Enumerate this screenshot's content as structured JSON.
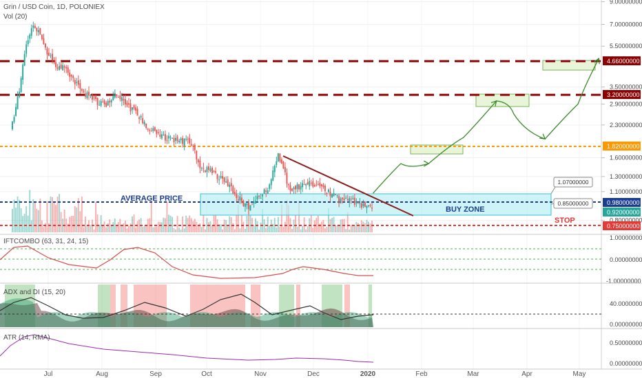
{
  "header": {
    "symbol": "Grin / USD Coin, 1D, POLONIEX",
    "volume": "Vol (20)"
  },
  "colors": {
    "up": "#26a69a",
    "down": "#ef5350",
    "dashed_levels": "#8b0000",
    "orange": "#ff9800",
    "blue": "#1a3d8f",
    "red": "#e53935",
    "zone_fill": "#b9f0f5",
    "zone_stroke": "#36c0d0",
    "target_fill": "#e8f5d8",
    "target_stroke": "#7cb35a",
    "trend": "#8b1a1a",
    "arrow": "#3a8a2a",
    "ift": "#d84c4c",
    "adx": "#333333",
    "atr": "#9c27b0"
  },
  "price_axis": {
    "ticks": [
      "9.00000000",
      "7.00000000",
      "5.50000000",
      "3.50000000",
      "2.90000000",
      "2.30000000",
      "1.60000000",
      "1.30000000",
      "1.10000000",
      "0.80000000"
    ],
    "tag_labels": {
      "l466": "4.66000000",
      "l320": "3.20000000",
      "l182": "1.82000000",
      "l098": "0.98000000",
      "l092": "0.92000000",
      "l075": "0.75000000"
    }
  },
  "time_axis": {
    "labels": [
      "Jul",
      "Aug",
      "Sep",
      "Oct",
      "Nov",
      "Dec",
      "2020",
      "Feb",
      "Mar",
      "Apr",
      "May"
    ]
  },
  "annotations": {
    "average_price": "AVERAGE PRICE",
    "buy_zone": "BUY ZONE",
    "stop": "STOP",
    "callout_high": "1.07000000",
    "callout_low": "0.85000000"
  },
  "indicators": {
    "ift": {
      "label": "IFTCOMBO (63, 31, 24, 15)",
      "ticks": [
        "1.00000000",
        "0.00000000",
        "-1.00000000"
      ]
    },
    "adx": {
      "label": "ADX and DI (15, 20)",
      "ticks": [
        "40.00000000",
        "0.00000000"
      ]
    },
    "atr": {
      "label": "ATR (14, RMA)",
      "ticks": [
        "0.50000000",
        "0.00000000"
      ]
    }
  },
  "chart_data": {
    "type": "line",
    "title": "Grin / USD Coin, 1D, POLONIEX",
    "price_scale": "log",
    "levels": [
      4.66,
      3.2,
      1.82,
      0.98,
      0.92,
      0.75
    ],
    "buy_zone": [
      0.85,
      1.07
    ],
    "price_path": {
      "x": [
        "2019-06-10",
        "2019-06-15",
        "2019-06-18",
        "2019-06-22",
        "2019-06-26",
        "2019-07-01",
        "2019-07-06",
        "2019-07-12",
        "2019-07-16",
        "2019-07-22",
        "2019-07-28",
        "2019-08-03",
        "2019-08-09",
        "2019-08-15",
        "2019-08-21",
        "2019-08-27",
        "2019-09-03",
        "2019-09-10",
        "2019-09-17",
        "2019-09-22",
        "2019-09-27",
        "2019-10-03",
        "2019-10-09",
        "2019-10-15",
        "2019-10-21",
        "2019-10-25",
        "2019-10-28",
        "2019-11-01",
        "2019-11-05",
        "2019-11-08",
        "2019-11-11",
        "2019-11-14",
        "2019-11-18",
        "2019-11-21",
        "2019-11-25",
        "2019-11-30",
        "2019-12-05",
        "2019-12-10",
        "2019-12-16",
        "2019-12-21",
        "2019-12-27",
        "2020-01-01",
        "2020-01-04"
      ],
      "y": [
        2.2,
        3.3,
        5.0,
        6.9,
        6.4,
        5.0,
        4.5,
        4.2,
        3.8,
        3.3,
        3.0,
        2.85,
        3.2,
        2.95,
        2.6,
        2.3,
        2.05,
        1.95,
        1.93,
        1.9,
        1.43,
        1.37,
        1.28,
        1.13,
        0.98,
        0.93,
        1.0,
        1.05,
        1.15,
        1.35,
        1.65,
        1.4,
        1.1,
        1.13,
        1.2,
        1.22,
        1.15,
        1.1,
        1.0,
        1.02,
        0.96,
        0.95,
        0.9
      ]
    },
    "projection_path": {
      "x": [
        "2020-01-04",
        "2020-01-20",
        "2020-02-05",
        "2020-02-25",
        "2020-03-15",
        "2020-03-25",
        "2020-04-12",
        "2020-05-01",
        "2020-05-13"
      ],
      "y": [
        1.08,
        1.5,
        1.5,
        2.0,
        3.0,
        2.6,
        1.97,
        2.9,
        4.8
      ]
    },
    "ylim": [
      0.7,
      9.0
    ]
  }
}
